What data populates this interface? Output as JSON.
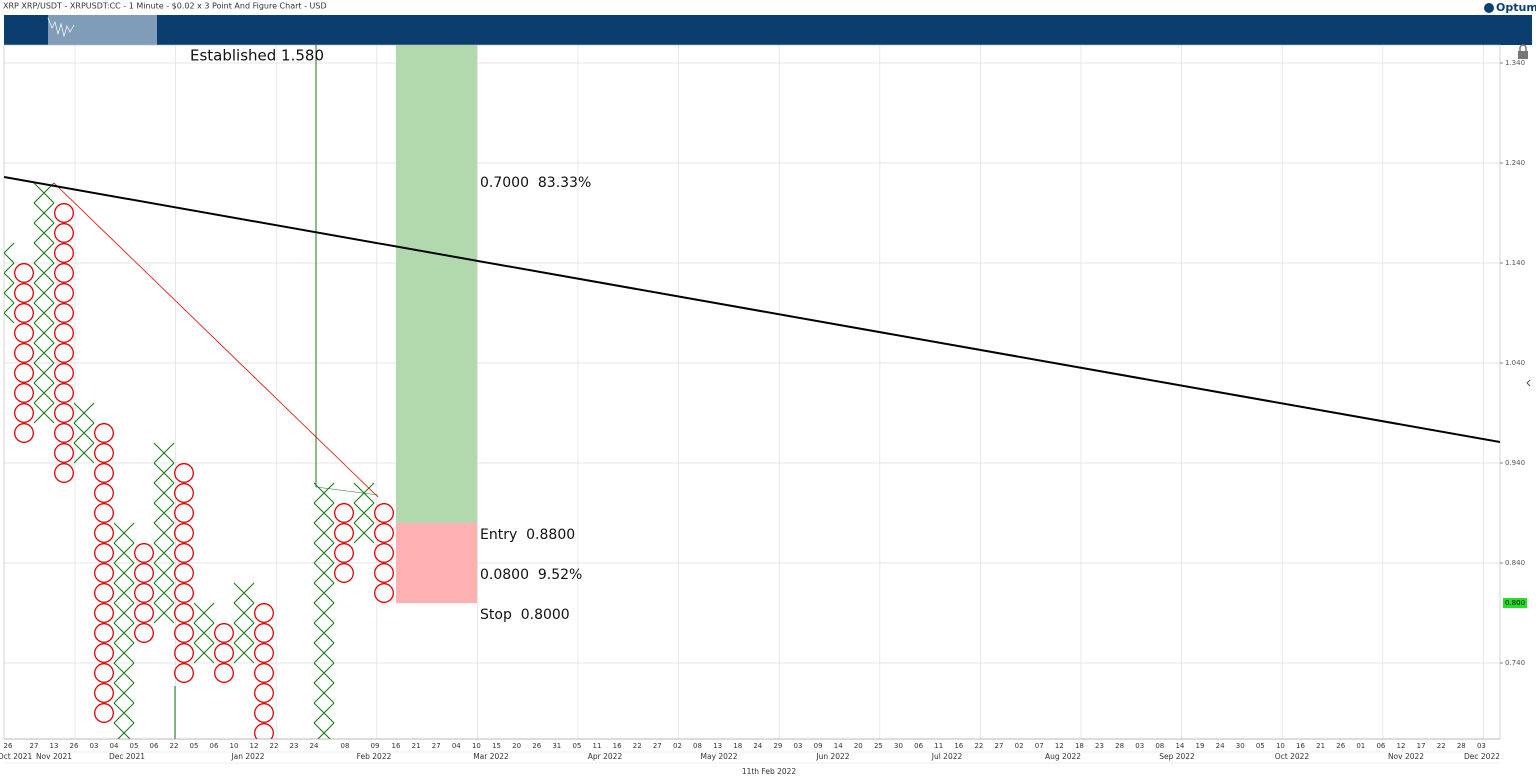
{
  "chart_data": {
    "type": "point-and-figure",
    "title": "XRP XRP/USDT - XRPUSDT:CC - 1 Minute - $0.02 x 3 Point And Figure Chart - USD",
    "brand": "Optuma",
    "box_size": 0.02,
    "x_color": "#1a7a1a",
    "o_color": "#e00000",
    "ylim": [
      0.664,
      1.358
    ],
    "yticks": [
      {
        "value": 1.34,
        "label": "1.340"
      },
      {
        "value": 1.24,
        "label": "1.240"
      },
      {
        "value": 1.14,
        "label": "1.140"
      },
      {
        "value": 1.04,
        "label": "1.040"
      },
      {
        "value": 0.94,
        "label": "0.940"
      },
      {
        "value": 0.84,
        "label": "0.840"
      },
      {
        "value": 0.74,
        "label": "0.740"
      }
    ],
    "grid": true,
    "last_price": {
      "value": 0.8,
      "label": "0.800"
    },
    "columns": [
      {
        "kind": "X",
        "high": 1.15,
        "low": 1.09
      },
      {
        "kind": "O",
        "high": 1.13,
        "low": 0.97
      },
      {
        "kind": "X",
        "high": 1.21,
        "low": 0.99
      },
      {
        "kind": "O",
        "high": 1.19,
        "low": 0.93
      },
      {
        "kind": "X",
        "high": 0.99,
        "low": 0.95
      },
      {
        "kind": "O",
        "high": 0.97,
        "low": 0.69
      },
      {
        "kind": "X",
        "high": 0.87,
        "low": 0.67
      },
      {
        "kind": "O",
        "high": 0.85,
        "low": 0.77
      },
      {
        "kind": "X",
        "high": 0.95,
        "low": 0.79
      },
      {
        "kind": "O",
        "high": 0.93,
        "low": 0.73
      },
      {
        "kind": "X",
        "high": 0.79,
        "low": 0.75
      },
      {
        "kind": "O",
        "high": 0.77,
        "low": 0.73
      },
      {
        "kind": "X",
        "high": 0.81,
        "low": 0.75
      },
      {
        "kind": "O",
        "high": 0.79,
        "low": 0.67
      },
      null,
      null,
      {
        "kind": "X",
        "high": 0.91,
        "low": 0.67
      },
      {
        "kind": "O",
        "high": 0.89,
        "low": 0.83
      },
      {
        "kind": "X",
        "high": 0.91,
        "low": 0.87
      },
      {
        "kind": "O",
        "high": 0.89,
        "low": 0.81
      }
    ],
    "annotation": "Established 1.580",
    "trade": {
      "entry": {
        "value": 0.88,
        "label": "Entry  0.8800"
      },
      "reward": {
        "value": 0.7,
        "label": "0.7000  83.33%"
      },
      "risk": {
        "value": 0.08,
        "label": "0.0800  9.52%"
      },
      "stop": {
        "value": 0.8,
        "label": "Stop  0.8000"
      }
    },
    "day_labels": [
      "26",
      "27",
      "13",
      "26",
      "03",
      "04",
      "05",
      "06",
      "22",
      "05",
      "06",
      "10",
      "12",
      "22",
      "23",
      "24",
      "08",
      "09",
      "16",
      "21",
      "27",
      "04",
      "10",
      "15",
      "20",
      "26",
      "31",
      "05",
      "11",
      "16",
      "22",
      "27",
      "02",
      "08",
      "13",
      "18",
      "24",
      "29",
      "03",
      "09",
      "14",
      "20",
      "25",
      "30",
      "06",
      "11",
      "16",
      "22",
      "27",
      "02",
      "07",
      "12",
      "18",
      "23",
      "28",
      "03",
      "08",
      "14",
      "19",
      "24",
      "30",
      "05",
      "10",
      "16",
      "21",
      "26",
      "01",
      "06",
      "12",
      "17",
      "22",
      "28",
      "03"
    ],
    "month_labels": [
      "Oct 2021",
      "Nov 2021",
      "Dec 2021",
      "Jan 2022",
      "Feb 2022",
      "Mar 2022",
      "Apr 2022",
      "May 2022",
      "Jun 2022",
      "Jul 2022",
      "Aug 2022",
      "Sep 2022",
      "Oct 2022",
      "Nov 2022",
      "Dec 2022"
    ],
    "date_label": "11th Feb 2022"
  }
}
